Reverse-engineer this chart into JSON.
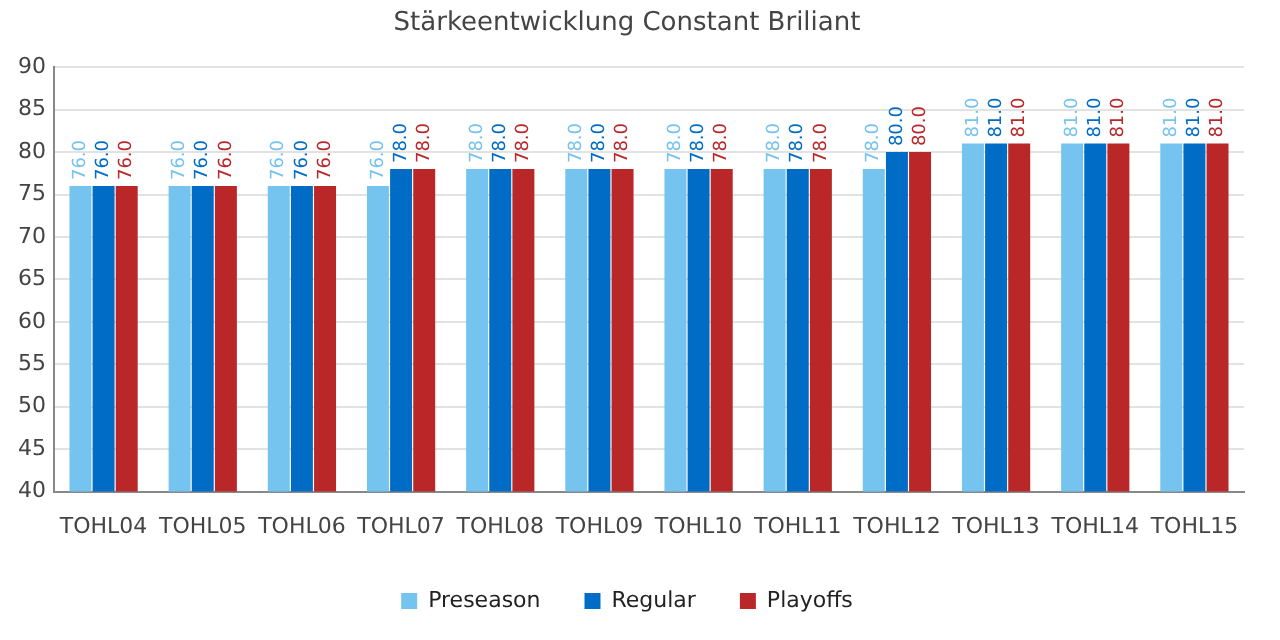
{
  "chart_data": {
    "type": "bar",
    "title": "Stärkeentwicklung Constant Briliant",
    "categories": [
      "TOHL04",
      "TOHL05",
      "TOHL06",
      "TOHL07",
      "TOHL08",
      "TOHL09",
      "TOHL10",
      "TOHL11",
      "TOHL12",
      "TOHL13",
      "TOHL14",
      "TOHL15"
    ],
    "series": [
      {
        "name": "Preseason",
        "color": "#75c3ef",
        "values": [
          76,
          76,
          76,
          76,
          78,
          78,
          78,
          78,
          78,
          81,
          81,
          81
        ],
        "value_labels": [
          "76.0",
          "76.0",
          "76.0",
          "76.0",
          "78.0",
          "78.0",
          "78.0",
          "78.0",
          "78.0",
          "81.0",
          "81.0",
          "81.0"
        ]
      },
      {
        "name": "Regular",
        "color": "#006cc6",
        "values": [
          76,
          76,
          76,
          78,
          78,
          78,
          78,
          78,
          80,
          81,
          81,
          81
        ],
        "value_labels": [
          "76.0",
          "76.0",
          "76.0",
          "78.0",
          "78.0",
          "78.0",
          "78.0",
          "78.0",
          "80.0",
          "81.0",
          "81.0",
          "81.0"
        ]
      },
      {
        "name": "Playoffs",
        "color": "#b92729",
        "values": [
          76,
          76,
          76,
          78,
          78,
          78,
          78,
          78,
          80,
          81,
          81,
          81
        ],
        "value_labels": [
          "76.0",
          "76.0",
          "76.0",
          "78.0",
          "78.0",
          "78.0",
          "78.0",
          "78.0",
          "80.0",
          "81.0",
          "81.0",
          "81.0"
        ]
      }
    ],
    "ylim": [
      40,
      90
    ],
    "yticks": [
      40,
      45,
      50,
      55,
      60,
      65,
      70,
      75,
      80,
      85,
      90
    ],
    "grid": "y",
    "legend": "bottom"
  }
}
